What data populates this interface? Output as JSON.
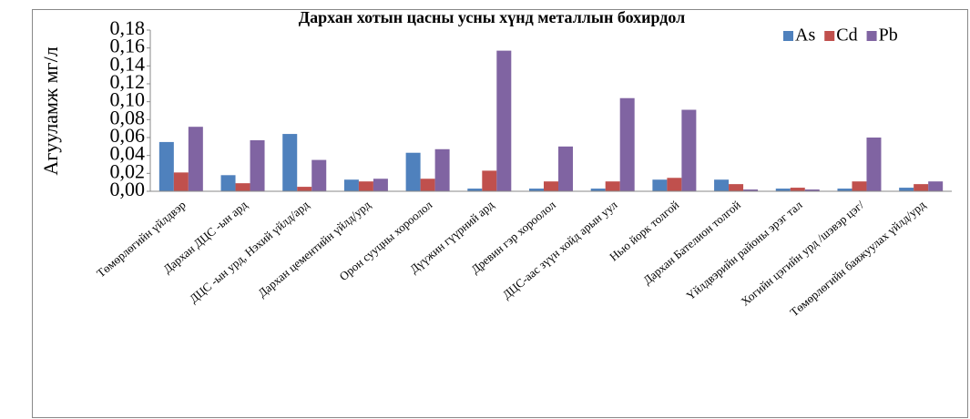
{
  "chart_data": {
    "type": "bar",
    "title": "Дархан хотын цасны усны хүнд металлын бохирдол",
    "ylabel": "Агууламж мг/л",
    "categories": [
      "Төмөрлөгийн үйлдвэр",
      "Дархан ДЦС -ын ард",
      "ДЦС -ын урд, Нэхий үйлд/ард",
      "Дархан цементийн үйлд/урд",
      "Орон сууцны хороолол",
      "Дүүжин гүүрний ард",
      "Древин гэр хороолол",
      "ДЦС-аас зүүн хойд арын уул",
      "Нью йорк толгой",
      "Дархан Бателион толгой",
      "Үйлдвэрийн районы эрэг тал",
      "Хогийн цэгийн урд /шэвэр цэг/",
      "Төмөрлөгийн баяжуулах үйлд/урд"
    ],
    "series": [
      {
        "name": "As",
        "color": "#4f81bd",
        "values": [
          0.055,
          0.018,
          0.064,
          0.013,
          0.043,
          0.003,
          0.003,
          0.003,
          0.013,
          0.013,
          0.003,
          0.003,
          0.004
        ]
      },
      {
        "name": "Cd",
        "color": "#c0504d",
        "values": [
          0.021,
          0.009,
          0.005,
          0.011,
          0.014,
          0.023,
          0.011,
          0.011,
          0.015,
          0.008,
          0.004,
          0.011,
          0.008
        ]
      },
      {
        "name": "Pb",
        "color": "#8064a2",
        "values": [
          0.072,
          0.057,
          0.035,
          0.014,
          0.047,
          0.157,
          0.05,
          0.104,
          0.091,
          0.002,
          0.002,
          0.06,
          0.011
        ]
      }
    ],
    "ylim": [
      0,
      0.18
    ],
    "yticks": [
      {
        "value": 0,
        "label": "0,00"
      },
      {
        "value": 0.02,
        "label": "0,02"
      },
      {
        "value": 0.04,
        "label": "0,04"
      },
      {
        "value": 0.06,
        "label": "0,06"
      },
      {
        "value": 0.08,
        "label": "0,08"
      },
      {
        "value": 0.1,
        "label": "0,10"
      },
      {
        "value": 0.12,
        "label": "0,12"
      },
      {
        "value": 0.14,
        "label": "0,14"
      },
      {
        "value": 0.16,
        "label": "0,16"
      },
      {
        "value": 0.18,
        "label": "0,18"
      }
    ],
    "legend": "top-right"
  }
}
